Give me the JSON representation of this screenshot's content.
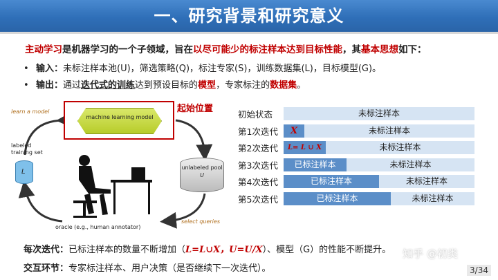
{
  "title": "一、研究背景和研究意义",
  "intro": {
    "p1": "主动学习",
    "p2": "是机器学习的一个子领域，旨在",
    "p3": "以尽可能少的标注样本达到目标性能",
    "p4": "，其",
    "p5": "基本思想",
    "p6": "如下："
  },
  "bullets": {
    "input": {
      "dot": "•",
      "label": "输入：",
      "text": "未标注样本池(U)，筛选策略(Q)，标注专家(S)，训练数据集(L)，目标模型(G)。"
    },
    "output": {
      "dot": "•",
      "label": "输出：",
      "t1": "通过",
      "t2": "迭代式的训练",
      "t3": "达到预设目标的",
      "t4": "模型",
      "t5": "，专家标注的",
      "t6": "数据集",
      "t7": "。"
    }
  },
  "diagram": {
    "start_label": "起始位置",
    "model_text": "machine learning model",
    "learn_label": "learn a model",
    "select_label": "select queries",
    "labeled_set": "labeled training set",
    "labeled_symbol": "L",
    "pool_label": "unlabeled pool",
    "pool_symbol": "U",
    "oracle_label": "oracle (e.g., human annotator)"
  },
  "iterations": [
    {
      "label": "初始状态",
      "fill_frac": 0.0,
      "fill_text": "",
      "rest_text": "未标注样本",
      "style": "plain"
    },
    {
      "label": "第1次迭代",
      "fill_frac": 0.11,
      "fill_text": "X",
      "rest_text": "未标注样本",
      "style": "formula-x"
    },
    {
      "label": "第2次迭代",
      "fill_frac": 0.22,
      "fill_text": "L= L ∪ X",
      "rest_text": "未标注样本",
      "style": "formula"
    },
    {
      "label": "第3次迭代",
      "fill_frac": 0.33,
      "fill_text": "已标注样本",
      "rest_text": "未标注样本",
      "style": "plain"
    },
    {
      "label": "第4次迭代",
      "fill_frac": 0.5,
      "fill_text": "已标注样本",
      "rest_text": "未标注样本",
      "style": "plain"
    },
    {
      "label": "第5次迭代",
      "fill_frac": 0.56,
      "fill_text": "已标注样本",
      "rest_text": "未标注样本",
      "style": "plain"
    }
  ],
  "summary": {
    "iter_label": "每次迭代：",
    "iter_text1": "已标注样本的数量不断增加（",
    "iter_formula": "L=L∪X，U=U/X",
    "iter_text2": "）、模型（G）的性能不断提升。",
    "interact_label": "交互环节：",
    "interact_text": "专家标注样本、用户决策（是否继续下一次迭代）。"
  },
  "watermark": "知乎 @初类",
  "page_number": "3/34",
  "colors": {
    "title_bg": "#2f6fb8",
    "accent_red": "#c00000",
    "bar_fill": "#5b8ec8",
    "bar_bg": "#d6e4f3"
  }
}
